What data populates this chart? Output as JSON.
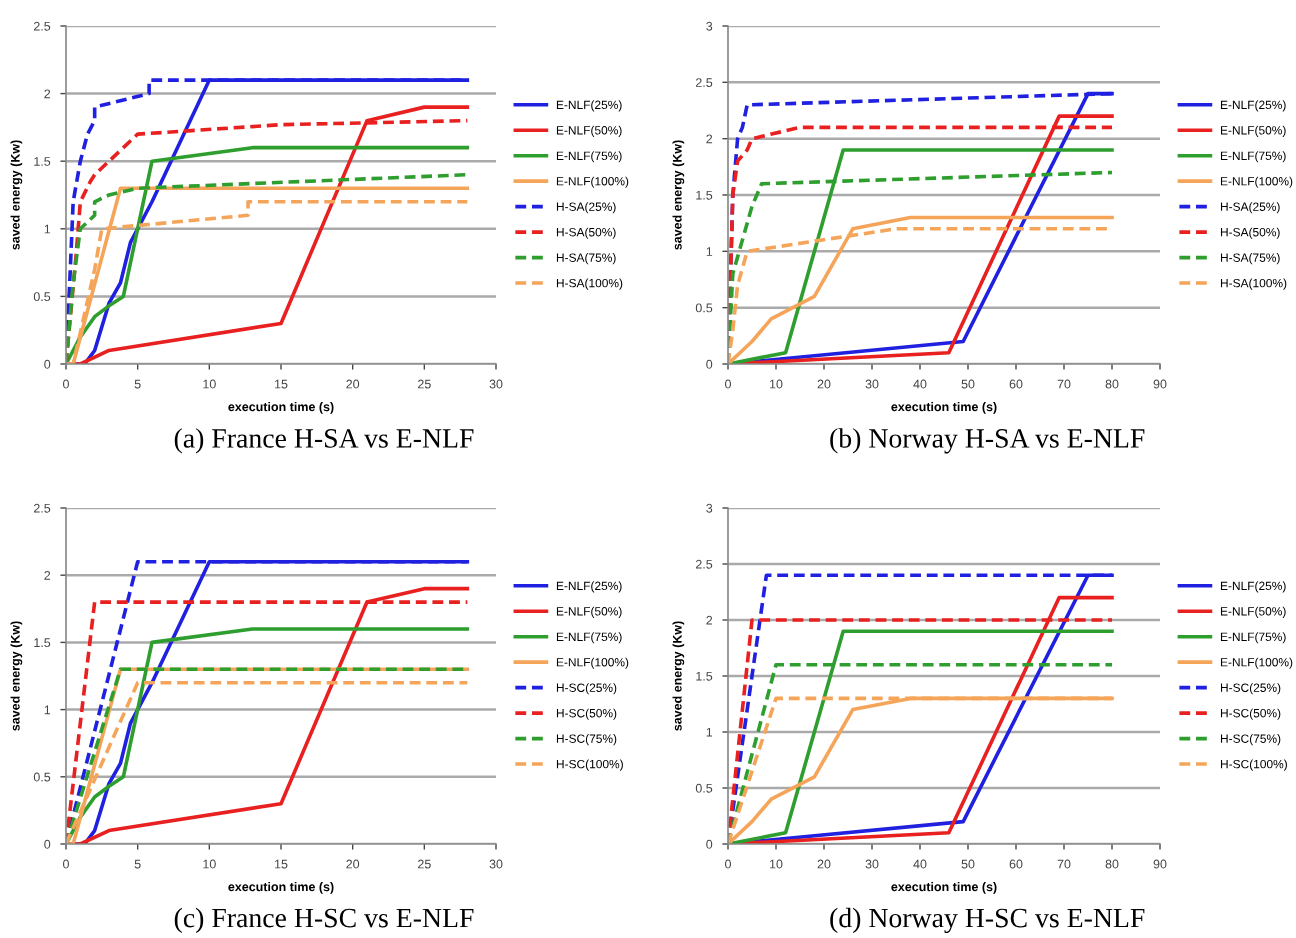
{
  "chart_data": [
    {
      "type": "line",
      "title": "(a) France H-SA vs E-NLF",
      "xlabel": "execution time (s)",
      "ylabel": "saved energy (Kw)",
      "xlim": [
        0,
        30
      ],
      "ylim": [
        0,
        2.5
      ],
      "xticks": [
        0,
        5,
        10,
        15,
        20,
        25,
        30
      ],
      "yticks": [
        0,
        0.5,
        1,
        1.5,
        2,
        2.5
      ],
      "grid": "y",
      "legend": "right",
      "marker": "none",
      "series": [
        {
          "name": "E-NLF(25%)",
          "color": "#2020e0",
          "line_style": "solid",
          "x": [
            0,
            1.3,
            2,
            3,
            3.8,
            4.5,
            6,
            10,
            28
          ],
          "values": [
            0,
            0,
            0.1,
            0.45,
            0.6,
            0.9,
            1.2,
            2.1,
            2.1
          ]
        },
        {
          "name": "E-NLF(50%)",
          "color": "#e82020",
          "line_style": "solid",
          "x": [
            0,
            1,
            3,
            15,
            21,
            25,
            28
          ],
          "values": [
            0,
            0,
            0.1,
            0.3,
            1.8,
            1.9,
            1.9
          ]
        },
        {
          "name": "E-NLF(75%)",
          "color": "#2e9e2e",
          "line_style": "solid",
          "x": [
            0,
            1,
            2,
            3,
            4,
            6,
            13,
            28
          ],
          "values": [
            0,
            0.2,
            0.35,
            0.43,
            0.5,
            1.5,
            1.6,
            1.6
          ]
        },
        {
          "name": "E-NLF(100%)",
          "color": "#f5a55a",
          "line_style": "solid",
          "x": [
            0,
            0.5,
            3.8,
            28
          ],
          "values": [
            0,
            0,
            1.3,
            1.3
          ]
        },
        {
          "name": "H-SA(25%)",
          "color": "#2020e0",
          "line_style": "dashed",
          "x": [
            0,
            0.3,
            0.5,
            1,
            1.5,
            2,
            2,
            5.8,
            5.8,
            28
          ],
          "values": [
            0,
            0.7,
            1.2,
            1.5,
            1.7,
            1.8,
            1.9,
            2.0,
            2.1,
            2.1
          ]
        },
        {
          "name": "H-SA(50%)",
          "color": "#e82020",
          "line_style": "dashed",
          "x": [
            0,
            0.7,
            1,
            1.7,
            2,
            3,
            4,
            5,
            15,
            28
          ],
          "values": [
            0,
            0.8,
            1.2,
            1.35,
            1.4,
            1.5,
            1.6,
            1.7,
            1.77,
            1.8
          ]
        },
        {
          "name": "H-SA(75%)",
          "color": "#2e9e2e",
          "line_style": "dashed",
          "x": [
            0,
            0.5,
            1,
            2,
            2,
            3,
            5,
            28
          ],
          "values": [
            0,
            0.6,
            1.0,
            1.1,
            1.2,
            1.25,
            1.3,
            1.4
          ]
        },
        {
          "name": "H-SA(100%)",
          "color": "#f5a55a",
          "line_style": "dashed",
          "x": [
            0,
            0.5,
            2,
            2.5,
            12.7,
            12.7,
            28
          ],
          "values": [
            0,
            0,
            0.7,
            1.0,
            1.1,
            1.2,
            1.2
          ]
        }
      ]
    },
    {
      "type": "line",
      "title": "(b) Norway H-SA vs E-NLF",
      "xlabel": "execution time (s)",
      "ylabel": "saved energy (Kw)",
      "xlim": [
        0,
        90
      ],
      "ylim": [
        0,
        3
      ],
      "xticks": [
        0,
        10,
        20,
        30,
        40,
        50,
        60,
        70,
        80,
        90
      ],
      "yticks": [
        0,
        0.5,
        1,
        1.5,
        2,
        2.5,
        3
      ],
      "grid": "y",
      "legend": "right",
      "marker": "none",
      "series": [
        {
          "name": "E-NLF(25%)",
          "color": "#2020e0",
          "line_style": "solid",
          "x": [
            0,
            49,
            75,
            80
          ],
          "values": [
            0,
            0.2,
            2.4,
            2.4
          ]
        },
        {
          "name": "E-NLF(50%)",
          "color": "#e82020",
          "line_style": "solid",
          "x": [
            0,
            46,
            69,
            80
          ],
          "values": [
            0,
            0.1,
            2.2,
            2.2
          ]
        },
        {
          "name": "E-NLF(75%)",
          "color": "#2e9e2e",
          "line_style": "solid",
          "x": [
            0,
            12,
            24,
            80
          ],
          "values": [
            0,
            0.1,
            1.9,
            1.9
          ]
        },
        {
          "name": "E-NLF(100%)",
          "color": "#f5a55a",
          "line_style": "solid",
          "x": [
            0,
            5,
            9,
            18,
            26,
            38,
            80
          ],
          "values": [
            0,
            0.2,
            0.4,
            0.6,
            1.2,
            1.3,
            1.3
          ]
        },
        {
          "name": "H-SA(25%)",
          "color": "#2020e0",
          "line_style": "dashed",
          "x": [
            0,
            1,
            2,
            3,
            4,
            80
          ],
          "values": [
            0,
            1.5,
            2.0,
            2.1,
            2.3,
            2.4
          ]
        },
        {
          "name": "H-SA(50%)",
          "color": "#e82020",
          "line_style": "dashed",
          "x": [
            0,
            1,
            2,
            4,
            5,
            15,
            80
          ],
          "values": [
            0,
            1.5,
            1.8,
            1.9,
            2.0,
            2.1,
            2.1
          ]
        },
        {
          "name": "H-SA(75%)",
          "color": "#2e9e2e",
          "line_style": "dashed",
          "x": [
            0,
            1,
            3,
            5,
            7,
            80
          ],
          "values": [
            0,
            0.8,
            1.1,
            1.4,
            1.6,
            1.7
          ]
        },
        {
          "name": "H-SA(100%)",
          "color": "#f5a55a",
          "line_style": "dashed",
          "x": [
            0,
            1,
            2,
            4,
            35,
            80
          ],
          "values": [
            0,
            0.3,
            0.7,
            1.0,
            1.2,
            1.2
          ]
        }
      ]
    },
    {
      "type": "line",
      "title": "(c) France H-SC vs E-NLF",
      "xlabel": "execution time (s)",
      "ylabel": "saved energy (Kw)",
      "xlim": [
        0,
        30
      ],
      "ylim": [
        0,
        2.5
      ],
      "xticks": [
        0,
        5,
        10,
        15,
        20,
        25,
        30
      ],
      "yticks": [
        0,
        0.5,
        1,
        1.5,
        2,
        2.5
      ],
      "grid": "y",
      "legend": "right",
      "marker": "none",
      "series": [
        {
          "name": "E-NLF(25%)",
          "color": "#2020e0",
          "line_style": "solid",
          "x": [
            0,
            1.3,
            2,
            3,
            3.8,
            4.5,
            6,
            10,
            28
          ],
          "values": [
            0,
            0,
            0.1,
            0.45,
            0.6,
            0.9,
            1.2,
            2.1,
            2.1
          ]
        },
        {
          "name": "E-NLF(50%)",
          "color": "#e82020",
          "line_style": "solid",
          "x": [
            0,
            1,
            3,
            15,
            21,
            25,
            28
          ],
          "values": [
            0,
            0,
            0.1,
            0.3,
            1.8,
            1.9,
            1.9
          ]
        },
        {
          "name": "E-NLF(75%)",
          "color": "#2e9e2e",
          "line_style": "solid",
          "x": [
            0,
            1,
            2,
            3,
            4,
            6,
            13,
            28
          ],
          "values": [
            0,
            0.2,
            0.35,
            0.43,
            0.5,
            1.5,
            1.6,
            1.6
          ]
        },
        {
          "name": "E-NLF(100%)",
          "color": "#f5a55a",
          "line_style": "solid",
          "x": [
            0,
            0.5,
            3.8,
            28
          ],
          "values": [
            0,
            0,
            1.3,
            1.3
          ]
        },
        {
          "name": "H-SC(25%)",
          "color": "#2020e0",
          "line_style": "dashed",
          "x": [
            0,
            5,
            28
          ],
          "values": [
            0,
            2.1,
            2.1
          ]
        },
        {
          "name": "H-SC(50%)",
          "color": "#e82020",
          "line_style": "dashed",
          "x": [
            0,
            2,
            28
          ],
          "values": [
            0,
            1.8,
            1.8
          ]
        },
        {
          "name": "H-SC(75%)",
          "color": "#2e9e2e",
          "line_style": "dashed",
          "x": [
            0,
            3.8,
            28
          ],
          "values": [
            0,
            1.3,
            1.3
          ]
        },
        {
          "name": "H-SC(100%)",
          "color": "#f5a55a",
          "line_style": "dashed",
          "x": [
            0,
            5,
            28
          ],
          "values": [
            0,
            1.2,
            1.2
          ]
        }
      ]
    },
    {
      "type": "line",
      "title": "(d) Norway H-SC vs E-NLF",
      "xlabel": "execution time (s)",
      "ylabel": "saved energy (Kw)",
      "xlim": [
        0,
        90
      ],
      "ylim": [
        0,
        3
      ],
      "xticks": [
        0,
        10,
        20,
        30,
        40,
        50,
        60,
        70,
        80,
        90
      ],
      "yticks": [
        0,
        0.5,
        1,
        1.5,
        2,
        2.5,
        3
      ],
      "grid": "y",
      "legend": "right",
      "marker": "none",
      "series": [
        {
          "name": "E-NLF(25%)",
          "color": "#2020e0",
          "line_style": "solid",
          "x": [
            0,
            49,
            75,
            80
          ],
          "values": [
            0,
            0.2,
            2.4,
            2.4
          ]
        },
        {
          "name": "E-NLF(50%)",
          "color": "#e82020",
          "line_style": "solid",
          "x": [
            0,
            46,
            69,
            80
          ],
          "values": [
            0,
            0.1,
            2.2,
            2.2
          ]
        },
        {
          "name": "E-NLF(75%)",
          "color": "#2e9e2e",
          "line_style": "solid",
          "x": [
            0,
            12,
            24,
            80
          ],
          "values": [
            0,
            0.1,
            1.9,
            1.9
          ]
        },
        {
          "name": "E-NLF(100%)",
          "color": "#f5a55a",
          "line_style": "solid",
          "x": [
            0,
            5,
            9,
            18,
            26,
            38,
            80
          ],
          "values": [
            0,
            0.2,
            0.4,
            0.6,
            1.2,
            1.3,
            1.3
          ]
        },
        {
          "name": "H-SC(25%)",
          "color": "#2020e0",
          "line_style": "dashed",
          "x": [
            0,
            8,
            80
          ],
          "values": [
            0,
            2.4,
            2.4
          ]
        },
        {
          "name": "H-SC(50%)",
          "color": "#e82020",
          "line_style": "dashed",
          "x": [
            0,
            5,
            80
          ],
          "values": [
            0,
            2.0,
            2.0
          ]
        },
        {
          "name": "H-SC(75%)",
          "color": "#2e9e2e",
          "line_style": "dashed",
          "x": [
            0,
            10,
            80
          ],
          "values": [
            0,
            1.6,
            1.6
          ]
        },
        {
          "name": "H-SC(100%)",
          "color": "#f5a55a",
          "line_style": "dashed",
          "x": [
            0,
            10,
            80
          ],
          "values": [
            0,
            1.3,
            1.3
          ]
        }
      ]
    }
  ]
}
